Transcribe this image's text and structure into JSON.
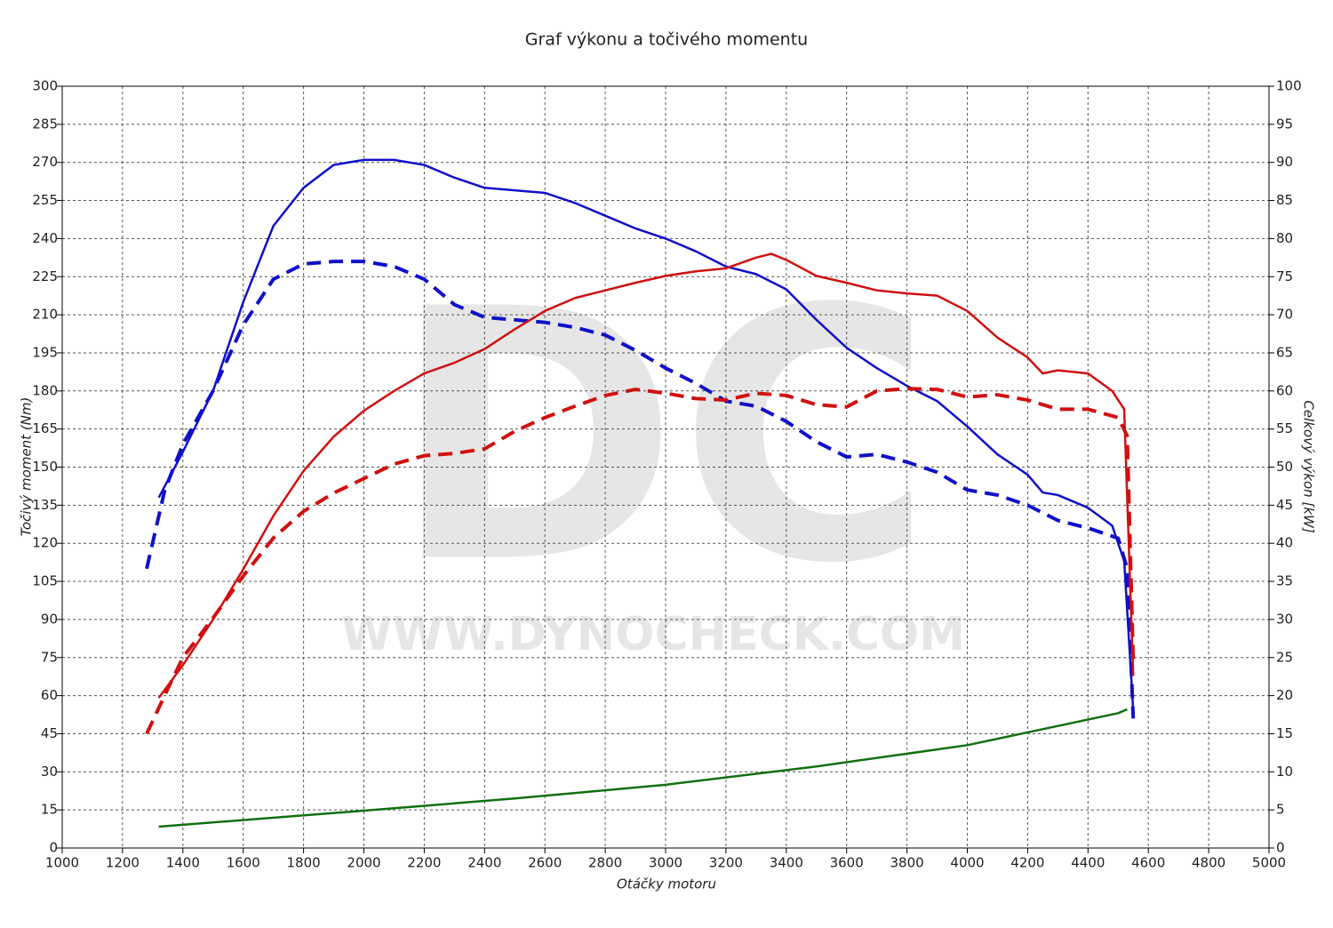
{
  "chart_data": {
    "type": "line",
    "title": "Graf výkonu a točivého momentu",
    "xlabel": "Otáčky motoru",
    "ylabel": "Točivý moment (Nm)",
    "y2label": "Celkový výkon [kW]",
    "watermark": [
      "DC",
      "WWW.DYNOCHECK.COM"
    ],
    "xlim": [
      1000,
      5000
    ],
    "xticks": [
      1000,
      1200,
      1400,
      1600,
      1800,
      2000,
      2200,
      2400,
      2600,
      2800,
      3000,
      3200,
      3400,
      3600,
      3800,
      4000,
      4200,
      4400,
      4600,
      4800,
      5000
    ],
    "ylim": [
      0,
      300
    ],
    "yticks": [
      0,
      15,
      30,
      45,
      60,
      75,
      90,
      105,
      120,
      135,
      150,
      165,
      180,
      195,
      210,
      225,
      240,
      255,
      270,
      285,
      300
    ],
    "y2lim": [
      0,
      100
    ],
    "y2ticks": [
      0,
      5,
      10,
      15,
      20,
      25,
      30,
      35,
      40,
      45,
      50,
      55,
      60,
      65,
      70,
      75,
      80,
      85,
      90,
      95,
      100
    ],
    "grid": true,
    "series": [
      {
        "color": "#1010c8",
        "dash": false,
        "x": [
          1320,
          1400,
          1500,
          1600,
          1700,
          1800,
          1900,
          2000,
          2100,
          2200,
          2300,
          2400,
          2500,
          2600,
          2700,
          2800,
          2900,
          3000,
          3100,
          3200,
          3300,
          3400,
          3500,
          3600,
          3700,
          3800,
          3900,
          4000,
          4100,
          4200,
          4250,
          4300,
          4400,
          4480,
          4520,
          4550
        ],
        "values": [
          138,
          156,
          180,
          215,
          245,
          260,
          269,
          271,
          271,
          269,
          264,
          260,
          259,
          258,
          254,
          249,
          244,
          240,
          235,
          229,
          226,
          220,
          208,
          197,
          189,
          182,
          176,
          166,
          155,
          147,
          140,
          139,
          134,
          127,
          113,
          54
        ]
      },
      {
        "color": "#1010c8",
        "dash": true,
        "x": [
          1280,
          1340,
          1400,
          1500,
          1600,
          1700,
          1800,
          1900,
          2000,
          2100,
          2200,
          2300,
          2400,
          2500,
          2600,
          2700,
          2800,
          2900,
          3000,
          3100,
          3200,
          3300,
          3400,
          3500,
          3600,
          3700,
          3800,
          3900,
          4000,
          4100,
          4200,
          4300,
          4400,
          4500,
          4530,
          4550
        ],
        "values": [
          110,
          141,
          159,
          180,
          206,
          224,
          230,
          231,
          231,
          229,
          224,
          214,
          209,
          208,
          207,
          205,
          202,
          196,
          189,
          183,
          176,
          174,
          168,
          160,
          154,
          155,
          152,
          148,
          141,
          139,
          135,
          129,
          126,
          122,
          110,
          51
        ]
      },
      {
        "color": "#d01010",
        "dash": false,
        "axis": "y2",
        "x": [
          1320,
          1400,
          1500,
          1600,
          1700,
          1800,
          1900,
          2000,
          2100,
          2200,
          2300,
          2400,
          2500,
          2600,
          2700,
          2800,
          2900,
          3000,
          3100,
          3200,
          3300,
          3350,
          3400,
          3500,
          3600,
          3700,
          3800,
          3900,
          4000,
          4100,
          4200,
          4250,
          4300,
          4400,
          4480,
          4520,
          4550
        ],
        "values": [
          19.7,
          24,
          30,
          36.6,
          43.6,
          49.5,
          54,
          57.4,
          60,
          62.3,
          63.7,
          65.5,
          68.1,
          70.5,
          72.2,
          73.2,
          74.2,
          75.1,
          75.7,
          76.1,
          77.5,
          78,
          77.2,
          75.1,
          74.2,
          73.2,
          72.8,
          72.5,
          70.5,
          67,
          64.4,
          62.3,
          62.7,
          62.3,
          60,
          57.6,
          22.6
        ]
      },
      {
        "color": "#d01010",
        "dash": true,
        "axis": "y2",
        "x": [
          1280,
          1350,
          1400,
          1500,
          1600,
          1700,
          1800,
          1900,
          2000,
          2100,
          2200,
          2300,
          2400,
          2500,
          2600,
          2700,
          2800,
          2900,
          3000,
          3100,
          3200,
          3300,
          3400,
          3500,
          3600,
          3700,
          3800,
          3900,
          4000,
          4100,
          4200,
          4300,
          4400,
          4500,
          4530,
          4550
        ],
        "values": [
          15,
          20.9,
          25,
          30.2,
          35.7,
          40.7,
          44.2,
          46.6,
          48.5,
          50.4,
          51.5,
          51.8,
          52.4,
          54.7,
          56.5,
          58,
          59.4,
          60.2,
          59.7,
          59,
          58.8,
          59.7,
          59.4,
          58.2,
          57.9,
          60,
          60.3,
          60.2,
          59.2,
          59.5,
          58.8,
          57.6,
          57.6,
          56.5,
          54.1,
          24.4
        ]
      },
      {
        "color": "#107010",
        "dash": false,
        "axis": "y2",
        "x": [
          1320,
          2000,
          2500,
          3000,
          3500,
          4000,
          4500,
          4530
        ],
        "values": [
          2.8,
          4.9,
          6.5,
          8.3,
          10.7,
          13.5,
          17.7,
          18.2
        ]
      }
    ]
  }
}
